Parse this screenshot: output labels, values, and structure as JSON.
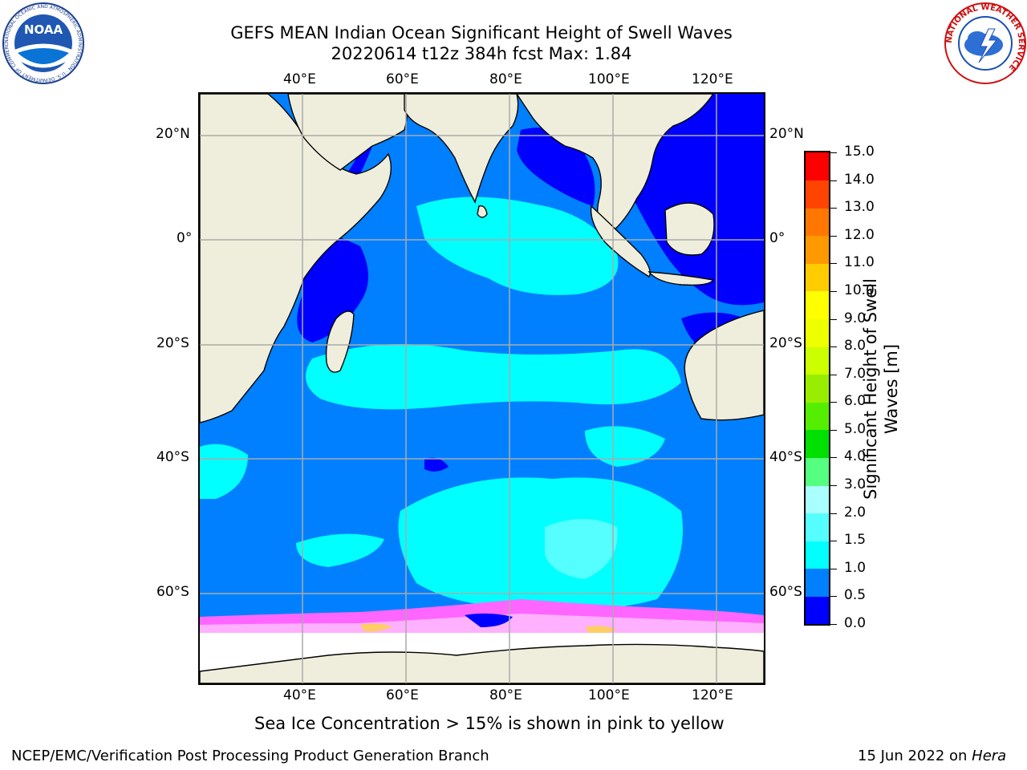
{
  "header": {
    "title_line1": "GEFS MEAN Indian Ocean Significant Height of Swell Waves",
    "title_line2": "20220614 t12z 384h fcst   Max: 1.84"
  },
  "logos": {
    "left_text": "NOAA",
    "left_ring_text": "NATIONAL OCEANIC AND ATMOSPHERIC ADMINISTRATION · U.S. DEPARTMENT OF COMMERCE",
    "right_ring_text": "NATIONAL WEATHER SERVICE"
  },
  "map": {
    "lon_labels": [
      "40°E",
      "60°E",
      "80°E",
      "100°E",
      "120°E"
    ],
    "lat_labels": [
      "20°N",
      "0°",
      "20°S",
      "40°S",
      "60°S"
    ]
  },
  "colorbar": {
    "title_line1": "Significant Height of Swell",
    "title_line2": "Waves [m]",
    "ticks": [
      "0.0",
      "0.5",
      "1.0",
      "1.5",
      "2.0",
      "3.0",
      "4.0",
      "5.0",
      "6.0",
      "7.0",
      "8.0",
      "9.0",
      "10.0",
      "11.0",
      "12.0",
      "13.0",
      "14.0",
      "15.0"
    ],
    "colors": [
      "#0000ff",
      "#0080ff",
      "#00ffff",
      "#55ffff",
      "#aaffff",
      "#55ff80",
      "#00e000",
      "#55ee00",
      "#99ee00",
      "#ccff00",
      "#eeff00",
      "#ffff00",
      "#ffcc00",
      "#ff9900",
      "#ff7700",
      "#ff4400",
      "#ff0000"
    ]
  },
  "footer": {
    "ice_note": "Sea Ice Concentration > 15% is shown in pink to yellow",
    "branch": "NCEP/EMC/Verification Post Processing Product Generation Branch",
    "date_prefix": "15 Jun 2022 on ",
    "host": "Hera"
  }
}
